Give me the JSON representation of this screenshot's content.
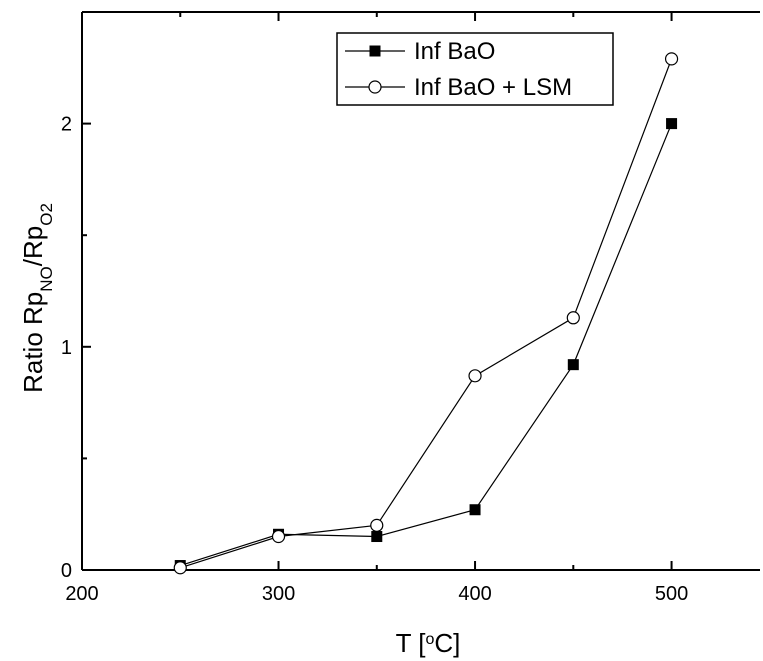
{
  "chart_data": {
    "type": "line",
    "xlabel": "T [°C]",
    "xlabel_parts": {
      "main": "T [",
      "sup": "o",
      "tail": "C]"
    },
    "ylabel_parts": {
      "pre": "Ratio Rp",
      "sub1": "NO",
      "mid": "/Rp",
      "sub2": "O2"
    },
    "xlim": [
      200,
      545
    ],
    "ylim": [
      0,
      2.5
    ],
    "xticks": [
      200,
      300,
      400,
      500
    ],
    "yticks": [
      0,
      1,
      2
    ],
    "x": [
      250,
      300,
      350,
      400,
      450,
      500
    ],
    "series": [
      {
        "name": "Inf BaO",
        "marker": "filled-square",
        "values": [
          0.02,
          0.16,
          0.15,
          0.27,
          0.92,
          2.0
        ]
      },
      {
        "name": "Inf BaO + LSM",
        "marker": "open-circle",
        "values": [
          0.01,
          0.15,
          0.2,
          0.87,
          1.13,
          2.29
        ]
      }
    ],
    "legend_position": "top-center",
    "grid": false
  }
}
